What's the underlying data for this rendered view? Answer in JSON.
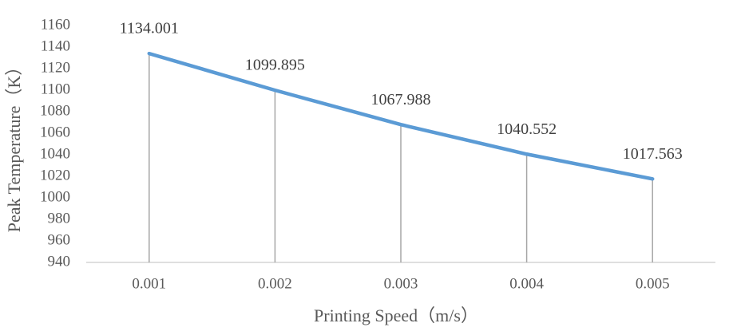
{
  "chart_data": {
    "type": "line",
    "x_label": "Printing Speed（m/s）",
    "y_label": "Peak Temperature（K）",
    "categories": [
      "0.001",
      "0.002",
      "0.003",
      "0.004",
      "0.005"
    ],
    "series": [
      {
        "name": "Peak Temperature",
        "color": "#5b9bd5",
        "values": [
          1134.001,
          1099.895,
          1067.988,
          1040.552,
          1017.563
        ]
      }
    ],
    "ylim": [
      940,
      1160
    ],
    "yticks": [
      940,
      960,
      980,
      1000,
      1020,
      1040,
      1060,
      1080,
      1100,
      1120,
      1140,
      1160
    ],
    "drop_lines": true,
    "data_labels": true,
    "legend": false
  }
}
